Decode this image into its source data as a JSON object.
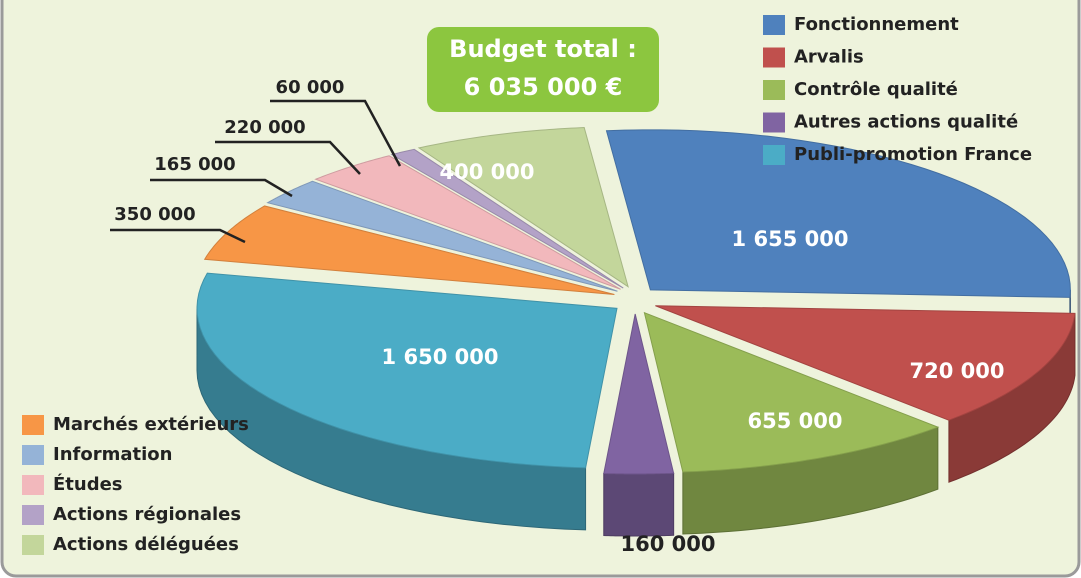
{
  "chart_data": {
    "type": "pie",
    "annotations": [
      "Budget total :",
      "6 035 000 €"
    ],
    "categories": [
      "Fonctionnement",
      "Arvalis",
      "Contrôle qualité",
      "Autres actions qualité",
      "Publi-promotion France",
      "Marchés extérieurs",
      "Information",
      "Études",
      "Actions régionales",
      "Actions déléguées"
    ],
    "values": [
      1655000,
      720000,
      655000,
      160000,
      1650000,
      350000,
      165000,
      220000,
      60000,
      400000
    ],
    "value_labels": [
      "1 655 000",
      "720 000",
      "655 000",
      "160 000",
      "1 650 000",
      "350 000",
      "165 000",
      "220 000",
      "60 000",
      "400 000"
    ],
    "colors": [
      "#4f81bd",
      "#c0504d",
      "#9bbb59",
      "#8064a2",
      "#4bacc6",
      "#f79646",
      "#95b3d7",
      "#f2b8bc",
      "#b3a2c7",
      "#c3d69b"
    ]
  }
}
